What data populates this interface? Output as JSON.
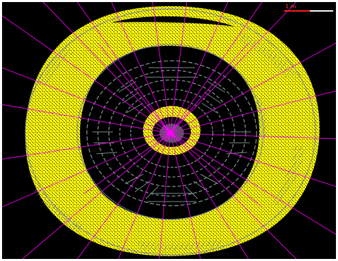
{
  "image": {
    "background_color": "#000000",
    "page_color": "#ffffff",
    "scale_label": "1 m",
    "colors": {
      "calorimeter_hits": "#ffff00",
      "hit_specks": "#000000",
      "muon_chambers": "#6a78c4",
      "tracker_layers": "#7d8f8c",
      "tracks": "#ff00ff",
      "scale_bar_red": "#ff2020",
      "scale_bar_white": "#ffffff"
    }
  }
}
